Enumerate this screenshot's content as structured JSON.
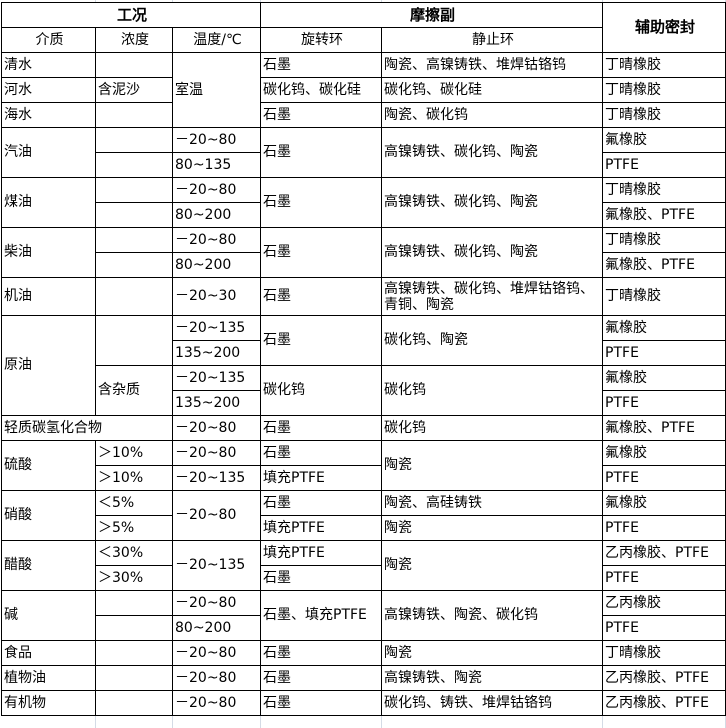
{
  "header": {
    "group_conditions": "工况",
    "group_friction": "摩擦副",
    "aux_seal": "辅助密封",
    "medium": "介质",
    "concentration": "浓度",
    "temperature": "温度/℃",
    "rotating": "旋转环",
    "stationary": "静止环"
  },
  "rows": [
    [
      "清水",
      "室温",
      "石墨",
      "陶瓷、高镍铸铁、堆焊钴铬钨",
      "丁晴橡胶"
    ],
    [
      "河水",
      "含泥沙",
      "碳化钨、碳化硅",
      "碳化钨、碳化硅",
      "丁晴橡胶"
    ],
    [
      "海水",
      "石墨",
      "陶瓷、碳化钨",
      "丁晴橡胶"
    ],
    [
      "汽油",
      "－20~80",
      "石墨",
      "高镍铸铁、碳化钨、陶瓷",
      "氟橡胶"
    ],
    [
      "80~135",
      "PTFE"
    ],
    [
      "煤油",
      "－20~80",
      "石墨",
      "高镍铸铁、碳化钨、陶瓷",
      "丁晴橡胶"
    ],
    [
      "80~200",
      "氟橡胶、PTFE"
    ],
    [
      "柴油",
      "－20~80",
      "石墨",
      "高镍铸铁、碳化钨、陶瓷",
      "丁晴橡胶"
    ],
    [
      "80~200",
      "氟橡胶、PTFE"
    ],
    [
      "机油",
      "－20~30",
      "石墨",
      "高镍铸铁、碳化钨、堆焊钴铬钨、青铜、陶瓷",
      "丁晴橡胶"
    ],
    [
      "原油",
      "－20~135",
      "石墨",
      "碳化钨、陶瓷",
      "氟橡胶"
    ],
    [
      "135~200",
      "PTFE"
    ],
    [
      "含杂质",
      "－20~135",
      "碳化钨",
      "碳化钨",
      "氟橡胶"
    ],
    [
      "135~200",
      "PTFE"
    ],
    [
      "轻质碳氢化合物",
      "－20~80",
      "石墨",
      "碳化钨",
      "氟橡胶、PTFE"
    ],
    [
      "硫酸",
      "＞10%",
      "－20~80",
      "石墨",
      "陶瓷",
      "氟橡胶"
    ],
    [
      "＞10%",
      "－20~135",
      "填充PTFE",
      "PTFE"
    ],
    [
      "硝酸",
      "＜5%",
      "－20~80",
      "石墨",
      "陶瓷、高硅铸铁",
      "氟橡胶"
    ],
    [
      "＞5%",
      "填充PTFE",
      "陶瓷",
      "PTFE"
    ],
    [
      "醋酸",
      "＜30%",
      "－20~135",
      "填充PTFE",
      "陶瓷",
      "乙丙橡胶、PTFE"
    ],
    [
      "＞30%",
      "石墨",
      "PTFE"
    ],
    [
      "碱",
      "－20~80",
      "石墨、填充PTFE",
      "高镍铸铁、陶瓷、碳化钨",
      "乙丙橡胶"
    ],
    [
      "80~200",
      "PTFE"
    ],
    [
      "食品",
      "－20~80",
      "石墨",
      "陶瓷",
      "丁晴橡胶"
    ],
    [
      "植物油",
      "－20~80",
      "石墨",
      "高镍铸铁、陶瓷",
      "乙丙橡胶、PTFE"
    ],
    [
      "有机物",
      "－20~80",
      "石墨",
      "碳化钨、铸铁、堆焊钴铬钨",
      "乙丙橡胶、PTFE"
    ]
  ]
}
